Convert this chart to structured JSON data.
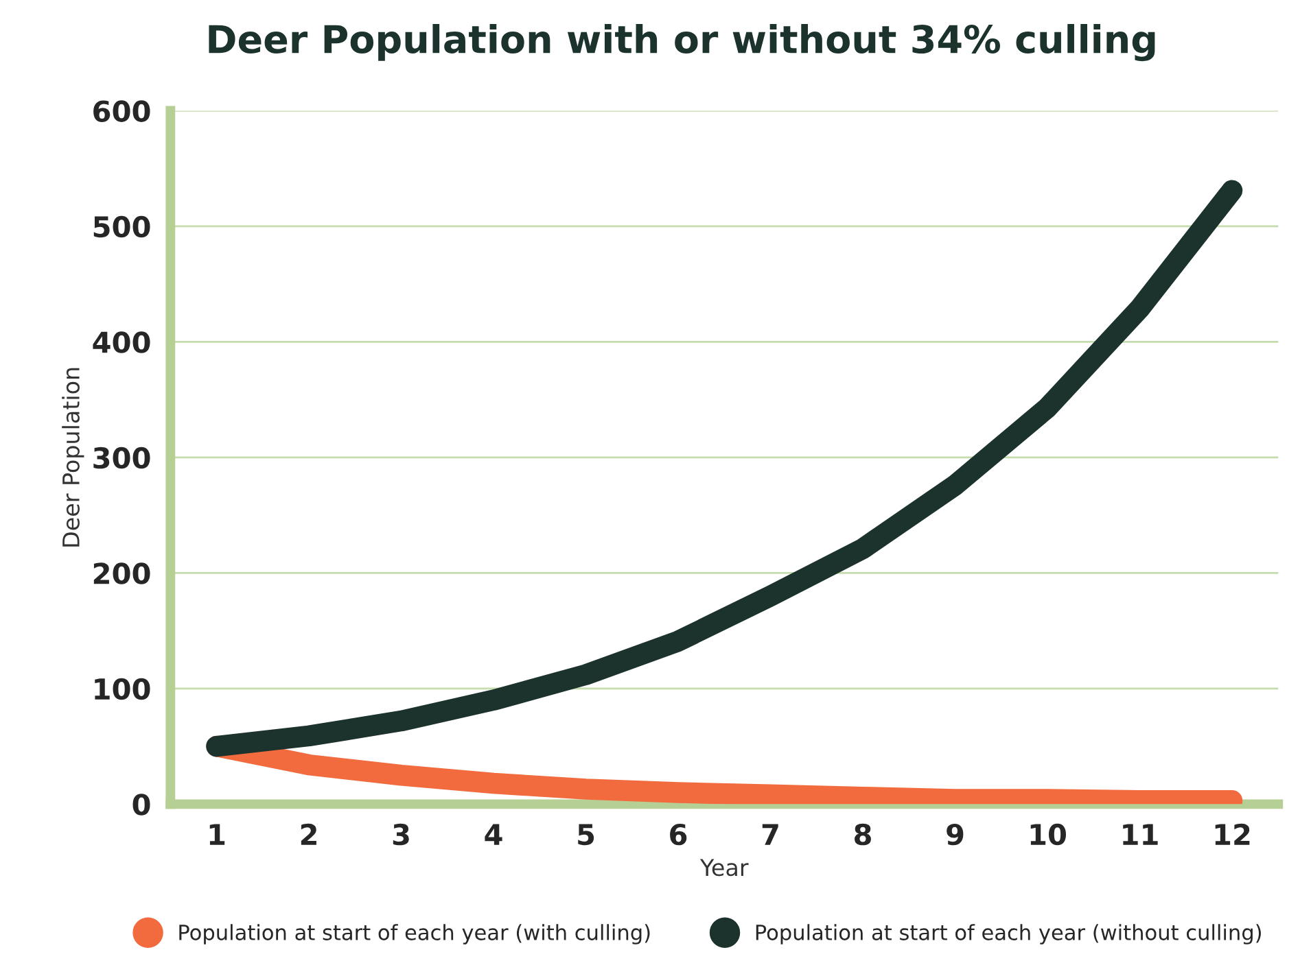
{
  "chart_data": {
    "type": "line",
    "title": "Deer Population with or without 34% culling",
    "xlabel": "Year",
    "ylabel": "Deer Population",
    "x": [
      1,
      2,
      3,
      4,
      5,
      6,
      7,
      8,
      9,
      10,
      11,
      12
    ],
    "series": [
      {
        "name": "Population at start of each year (with culling)",
        "color": "#f26b3f",
        "values": [
          50,
          34,
          25,
          18,
          13,
          10,
          8,
          6,
          4,
          4,
          3,
          3
        ]
      },
      {
        "name": "Population at start of each year (without culling)",
        "color": "#1b322d",
        "values": [
          50,
          59,
          72,
          90,
          112,
          141,
          180,
          221,
          276,
          343,
          429,
          531
        ]
      }
    ],
    "xlim": [
      0.5,
      12.5
    ],
    "xticks": [
      1,
      2,
      3,
      4,
      5,
      6,
      7,
      8,
      9,
      10,
      11,
      12
    ],
    "ylim": [
      0,
      600
    ],
    "yticks": [
      0,
      100,
      200,
      300,
      400,
      500,
      600
    ],
    "grid": "y",
    "legend": "bottom",
    "marker": "none",
    "line_style": "solid"
  }
}
